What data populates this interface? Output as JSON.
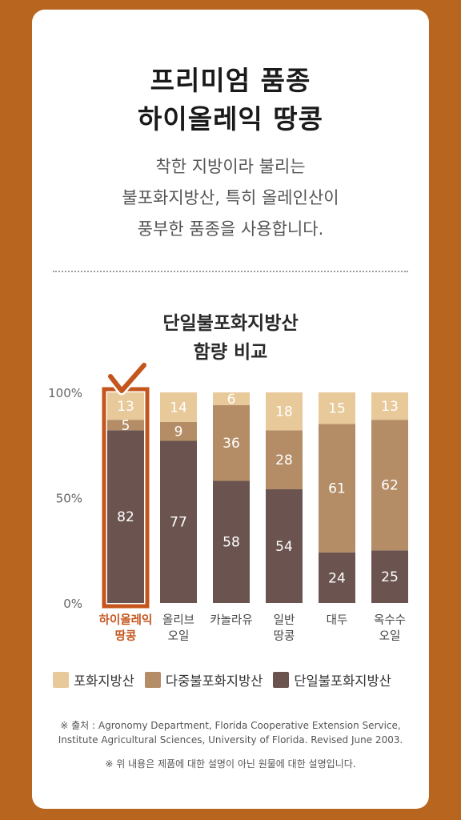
{
  "heading": {
    "line1": "프리미엄 품종",
    "line2": "하이올레익 땅콩"
  },
  "description": [
    "착한 지방이라 불리는",
    "불포화지방산, 특히 올레인산이",
    "풍부한 품종을 사용합니다."
  ],
  "chart_title": [
    "단일불포화지방산",
    "함량 비교"
  ],
  "colors": {
    "saturated": "#e8c99a",
    "poly": "#b48d67",
    "mono": "#6b5450",
    "highlight": "#c4561d",
    "background": "#b8651f"
  },
  "chart_data": {
    "type": "bar",
    "stacked": true,
    "categories": [
      [
        "하이올레익",
        "땅콩"
      ],
      [
        "올리브",
        "오일"
      ],
      [
        "카놀라유"
      ],
      [
        "일반",
        "땅콩"
      ],
      [
        "대두"
      ],
      [
        "옥수수",
        "오일"
      ]
    ],
    "series": [
      {
        "name": "단일불포화지방산",
        "values": [
          82,
          77,
          58,
          54,
          24,
          25
        ]
      },
      {
        "name": "다중불포화지방산",
        "values": [
          5,
          9,
          36,
          28,
          61,
          62
        ]
      },
      {
        "name": "포화지방산",
        "values": [
          13,
          14,
          6,
          18,
          15,
          13
        ]
      }
    ],
    "yticks": [
      "100%",
      "50%",
      "0%"
    ],
    "ylim": [
      0,
      100
    ],
    "highlighted_index": 0,
    "highlight_mark": "check-icon"
  },
  "legend": [
    "포화지방산",
    "다중불포화지방산",
    "단일불포화지방산"
  ],
  "source": [
    "※ 출처 : Agronomy Department, Florida Cooperative Extension Service,",
    "Institute Agricultural Sciences, University of Florida. Revised June 2003."
  ],
  "disclaimer": "※ 위 내용은 제품에 대한 설명이 아닌 원물에 대한 설명입니다."
}
